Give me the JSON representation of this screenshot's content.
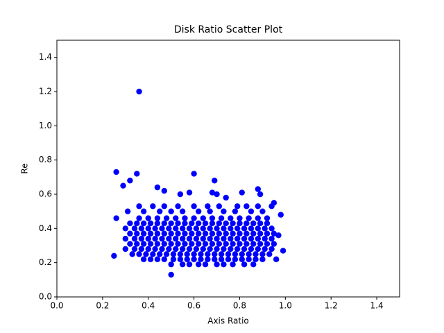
{
  "chart_data": {
    "type": "scatter",
    "title": "Disk Ratio Scatter Plot",
    "xlabel": "Axis Ratio",
    "ylabel": "Re",
    "color": "#0000ff",
    "xlim": [
      0,
      1.5
    ],
    "ylim": [
      0,
      1.5
    ],
    "xticks": [
      {
        "value": 0,
        "label": "0.0"
      },
      0.2,
      0.4,
      0.6,
      0.8,
      {
        "value": 1,
        "label": "1.0"
      },
      1.2,
      1.4
    ],
    "yticks": [
      {
        "value": 0,
        "label": "0.0"
      },
      0.2,
      0.4,
      0.6,
      0.8,
      {
        "value": 1,
        "label": "1.0"
      },
      1.2,
      1.4
    ],
    "x": [
      0.36,
      0.26,
      0.35,
      0.6,
      0.69,
      0.32,
      0.29,
      0.44,
      0.47,
      0.88,
      0.89,
      0.54,
      0.58,
      0.68,
      0.7,
      0.81,
      0.74,
      0.5,
      0.25,
      0.99,
      0.96,
      0.97,
      0.98,
      0.95,
      0.26,
      0.5,
      0.55,
      0.58,
      0.62,
      0.65,
      0.7,
      0.73,
      0.77,
      0.82,
      0.86,
      0.38,
      0.41,
      0.44,
      0.47,
      0.51,
      0.54,
      0.57,
      0.6,
      0.63,
      0.66,
      0.69,
      0.72,
      0.75,
      0.78,
      0.81,
      0.84,
      0.87,
      0.9,
      0.33,
      0.36,
      0.39,
      0.42,
      0.45,
      0.48,
      0.51,
      0.54,
      0.57,
      0.6,
      0.63,
      0.66,
      0.69,
      0.72,
      0.75,
      0.78,
      0.81,
      0.84,
      0.87,
      0.9,
      0.93,
      0.3,
      0.34,
      0.37,
      0.4,
      0.43,
      0.46,
      0.49,
      0.52,
      0.55,
      0.58,
      0.61,
      0.64,
      0.67,
      0.7,
      0.73,
      0.76,
      0.79,
      0.82,
      0.85,
      0.88,
      0.91,
      0.94,
      0.32,
      0.35,
      0.38,
      0.41,
      0.44,
      0.47,
      0.5,
      0.53,
      0.56,
      0.59,
      0.62,
      0.65,
      0.68,
      0.71,
      0.74,
      0.77,
      0.8,
      0.83,
      0.86,
      0.89,
      0.92,
      0.95,
      0.3,
      0.34,
      0.37,
      0.4,
      0.43,
      0.46,
      0.49,
      0.52,
      0.55,
      0.58,
      0.61,
      0.64,
      0.67,
      0.7,
      0.73,
      0.76,
      0.79,
      0.82,
      0.85,
      0.88,
      0.91,
      0.94,
      0.32,
      0.35,
      0.38,
      0.41,
      0.44,
      0.47,
      0.5,
      0.53,
      0.56,
      0.59,
      0.62,
      0.65,
      0.68,
      0.71,
      0.74,
      0.77,
      0.8,
      0.83,
      0.86,
      0.89,
      0.92,
      0.95,
      0.3,
      0.34,
      0.37,
      0.4,
      0.43,
      0.46,
      0.49,
      0.52,
      0.55,
      0.58,
      0.61,
      0.64,
      0.67,
      0.7,
      0.73,
      0.76,
      0.79,
      0.82,
      0.85,
      0.88,
      0.91,
      0.94,
      0.32,
      0.35,
      0.38,
      0.41,
      0.44,
      0.47,
      0.5,
      0.53,
      0.56,
      0.59,
      0.62,
      0.65,
      0.68,
      0.71,
      0.74,
      0.77,
      0.8,
      0.83,
      0.86,
      0.89,
      0.92,
      0.36,
      0.4,
      0.44,
      0.48,
      0.52,
      0.56,
      0.6,
      0.64,
      0.68,
      0.72,
      0.76,
      0.8,
      0.84,
      0.88,
      0.92,
      0.31,
      0.38,
      0.45,
      0.5,
      0.55,
      0.62,
      0.67,
      0.73,
      0.78,
      0.85,
      0.9,
      0.36,
      0.42,
      0.47,
      0.53,
      0.6,
      0.66,
      0.71,
      0.79,
      0.83,
      0.88,
      0.94
    ],
    "values": [
      1.2,
      0.73,
      0.72,
      0.72,
      0.68,
      0.68,
      0.65,
      0.64,
      0.62,
      0.63,
      0.6,
      0.6,
      0.61,
      0.61,
      0.6,
      0.61,
      0.58,
      0.13,
      0.24,
      0.27,
      0.22,
      0.36,
      0.48,
      0.55,
      0.46,
      0.19,
      0.19,
      0.19,
      0.19,
      0.19,
      0.19,
      0.19,
      0.19,
      0.19,
      0.19,
      0.22,
      0.22,
      0.22,
      0.22,
      0.22,
      0.22,
      0.22,
      0.22,
      0.22,
      0.22,
      0.22,
      0.22,
      0.22,
      0.22,
      0.22,
      0.22,
      0.22,
      0.22,
      0.25,
      0.25,
      0.25,
      0.25,
      0.25,
      0.25,
      0.25,
      0.25,
      0.25,
      0.25,
      0.25,
      0.25,
      0.25,
      0.25,
      0.25,
      0.25,
      0.25,
      0.25,
      0.25,
      0.25,
      0.25,
      0.28,
      0.28,
      0.28,
      0.28,
      0.28,
      0.28,
      0.28,
      0.28,
      0.28,
      0.28,
      0.28,
      0.28,
      0.28,
      0.28,
      0.28,
      0.28,
      0.28,
      0.28,
      0.28,
      0.28,
      0.28,
      0.28,
      0.31,
      0.31,
      0.31,
      0.31,
      0.31,
      0.31,
      0.31,
      0.31,
      0.31,
      0.31,
      0.31,
      0.31,
      0.31,
      0.31,
      0.31,
      0.31,
      0.31,
      0.31,
      0.31,
      0.31,
      0.31,
      0.31,
      0.34,
      0.34,
      0.34,
      0.34,
      0.34,
      0.34,
      0.34,
      0.34,
      0.34,
      0.34,
      0.34,
      0.34,
      0.34,
      0.34,
      0.34,
      0.34,
      0.34,
      0.34,
      0.34,
      0.34,
      0.34,
      0.34,
      0.37,
      0.37,
      0.37,
      0.37,
      0.37,
      0.37,
      0.37,
      0.37,
      0.37,
      0.37,
      0.37,
      0.37,
      0.37,
      0.37,
      0.37,
      0.37,
      0.37,
      0.37,
      0.37,
      0.37,
      0.37,
      0.37,
      0.4,
      0.4,
      0.4,
      0.4,
      0.4,
      0.4,
      0.4,
      0.4,
      0.4,
      0.4,
      0.4,
      0.4,
      0.4,
      0.4,
      0.4,
      0.4,
      0.4,
      0.4,
      0.4,
      0.4,
      0.4,
      0.4,
      0.43,
      0.43,
      0.43,
      0.43,
      0.43,
      0.43,
      0.43,
      0.43,
      0.43,
      0.43,
      0.43,
      0.43,
      0.43,
      0.43,
      0.43,
      0.43,
      0.43,
      0.43,
      0.43,
      0.43,
      0.43,
      0.46,
      0.46,
      0.46,
      0.46,
      0.46,
      0.46,
      0.46,
      0.46,
      0.46,
      0.46,
      0.46,
      0.46,
      0.46,
      0.46,
      0.46,
      0.5,
      0.5,
      0.5,
      0.5,
      0.5,
      0.5,
      0.5,
      0.5,
      0.5,
      0.5,
      0.5,
      0.53,
      0.53,
      0.53,
      0.53,
      0.53,
      0.53,
      0.53,
      0.53,
      0.53,
      0.53,
      0.53
    ]
  }
}
